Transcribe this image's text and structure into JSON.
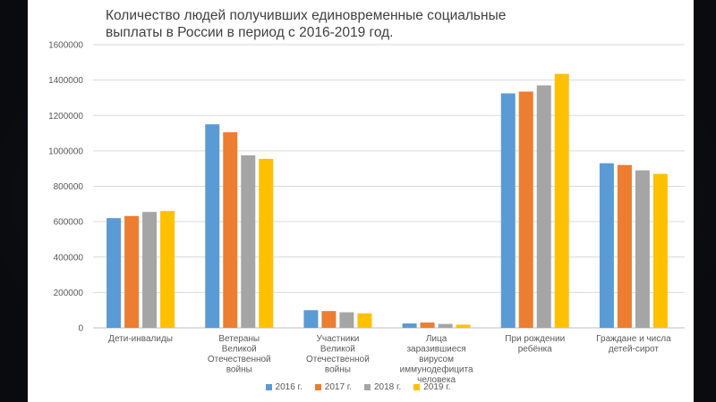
{
  "title_line1": "Количество людей получивших единовременные социальные",
  "title_line2": "выплаты в России в период с 2016-2019 год.",
  "chart_data": {
    "type": "bar",
    "title": "Количество людей получивших единовременные социальные выплаты в России в период с 2016-2019 год.",
    "ylim": [
      0,
      1600000
    ],
    "yticks": [
      0,
      200000,
      400000,
      600000,
      800000,
      1000000,
      1200000,
      1400000,
      1600000
    ],
    "ytick_labels": [
      "0",
      "200000",
      "400000",
      "600000",
      "800000",
      "1000000",
      "1200000",
      "1400000",
      "1600000"
    ],
    "xlabel": "",
    "ylabel": "",
    "grid": true,
    "legend_position": "bottom",
    "categories": [
      [
        "Дети-инвалиды"
      ],
      [
        "Ветераны",
        "Великой",
        "Отечественной",
        "войны"
      ],
      [
        "Участники",
        "Великой",
        "Отечественной",
        "войны"
      ],
      [
        "Лица",
        "заразившиеся",
        "вирусом",
        "иммунодефицита",
        "человека"
      ],
      [
        "При рождении",
        "ребёнка"
      ],
      [
        "Граждане и числа",
        "детей-сирот"
      ]
    ],
    "series": [
      {
        "name": "2016 г.",
        "color": "#5b9bd5",
        "values": [
          620000,
          1150000,
          100000,
          25000,
          1325000,
          930000
        ]
      },
      {
        "name": "2017 г.",
        "color": "#ed7d31",
        "values": [
          632000,
          1105000,
          95000,
          30000,
          1335000,
          920000
        ]
      },
      {
        "name": "2018 г.",
        "color": "#a5a5a5",
        "values": [
          655000,
          975000,
          88000,
          22000,
          1370000,
          890000
        ]
      },
      {
        "name": "2019 г.",
        "color": "#ffc000",
        "values": [
          660000,
          955000,
          82000,
          18000,
          1435000,
          870000
        ]
      }
    ]
  }
}
